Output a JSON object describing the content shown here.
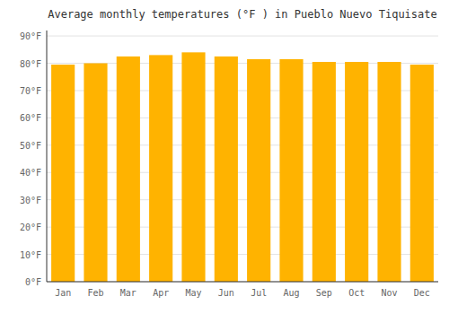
{
  "chart_data": {
    "type": "bar",
    "title": "Average monthly temperatures (°F ) in Pueblo Nuevo Tiquisate",
    "categories": [
      "Jan",
      "Feb",
      "Mar",
      "Apr",
      "May",
      "Jun",
      "Jul",
      "Aug",
      "Sep",
      "Oct",
      "Nov",
      "Dec"
    ],
    "values": [
      79.5,
      80.0,
      82.5,
      83.0,
      84.0,
      82.5,
      81.5,
      81.5,
      80.5,
      80.5,
      80.5,
      79.5
    ],
    "color": "#FFB300",
    "ylim": [
      0,
      92
    ],
    "yticks": [
      {
        "value": 0,
        "label": "0°F"
      },
      {
        "value": 10,
        "label": "10°F"
      },
      {
        "value": 20,
        "label": "20°F"
      },
      {
        "value": 30,
        "label": "30°F"
      },
      {
        "value": 40,
        "label": "40°F"
      },
      {
        "value": 50,
        "label": "50°F"
      },
      {
        "value": 60,
        "label": "60°F"
      },
      {
        "value": 70,
        "label": "70°F"
      },
      {
        "value": 80,
        "label": "80°F"
      },
      {
        "value": 90,
        "label": "90°F"
      }
    ],
    "grid": true
  }
}
